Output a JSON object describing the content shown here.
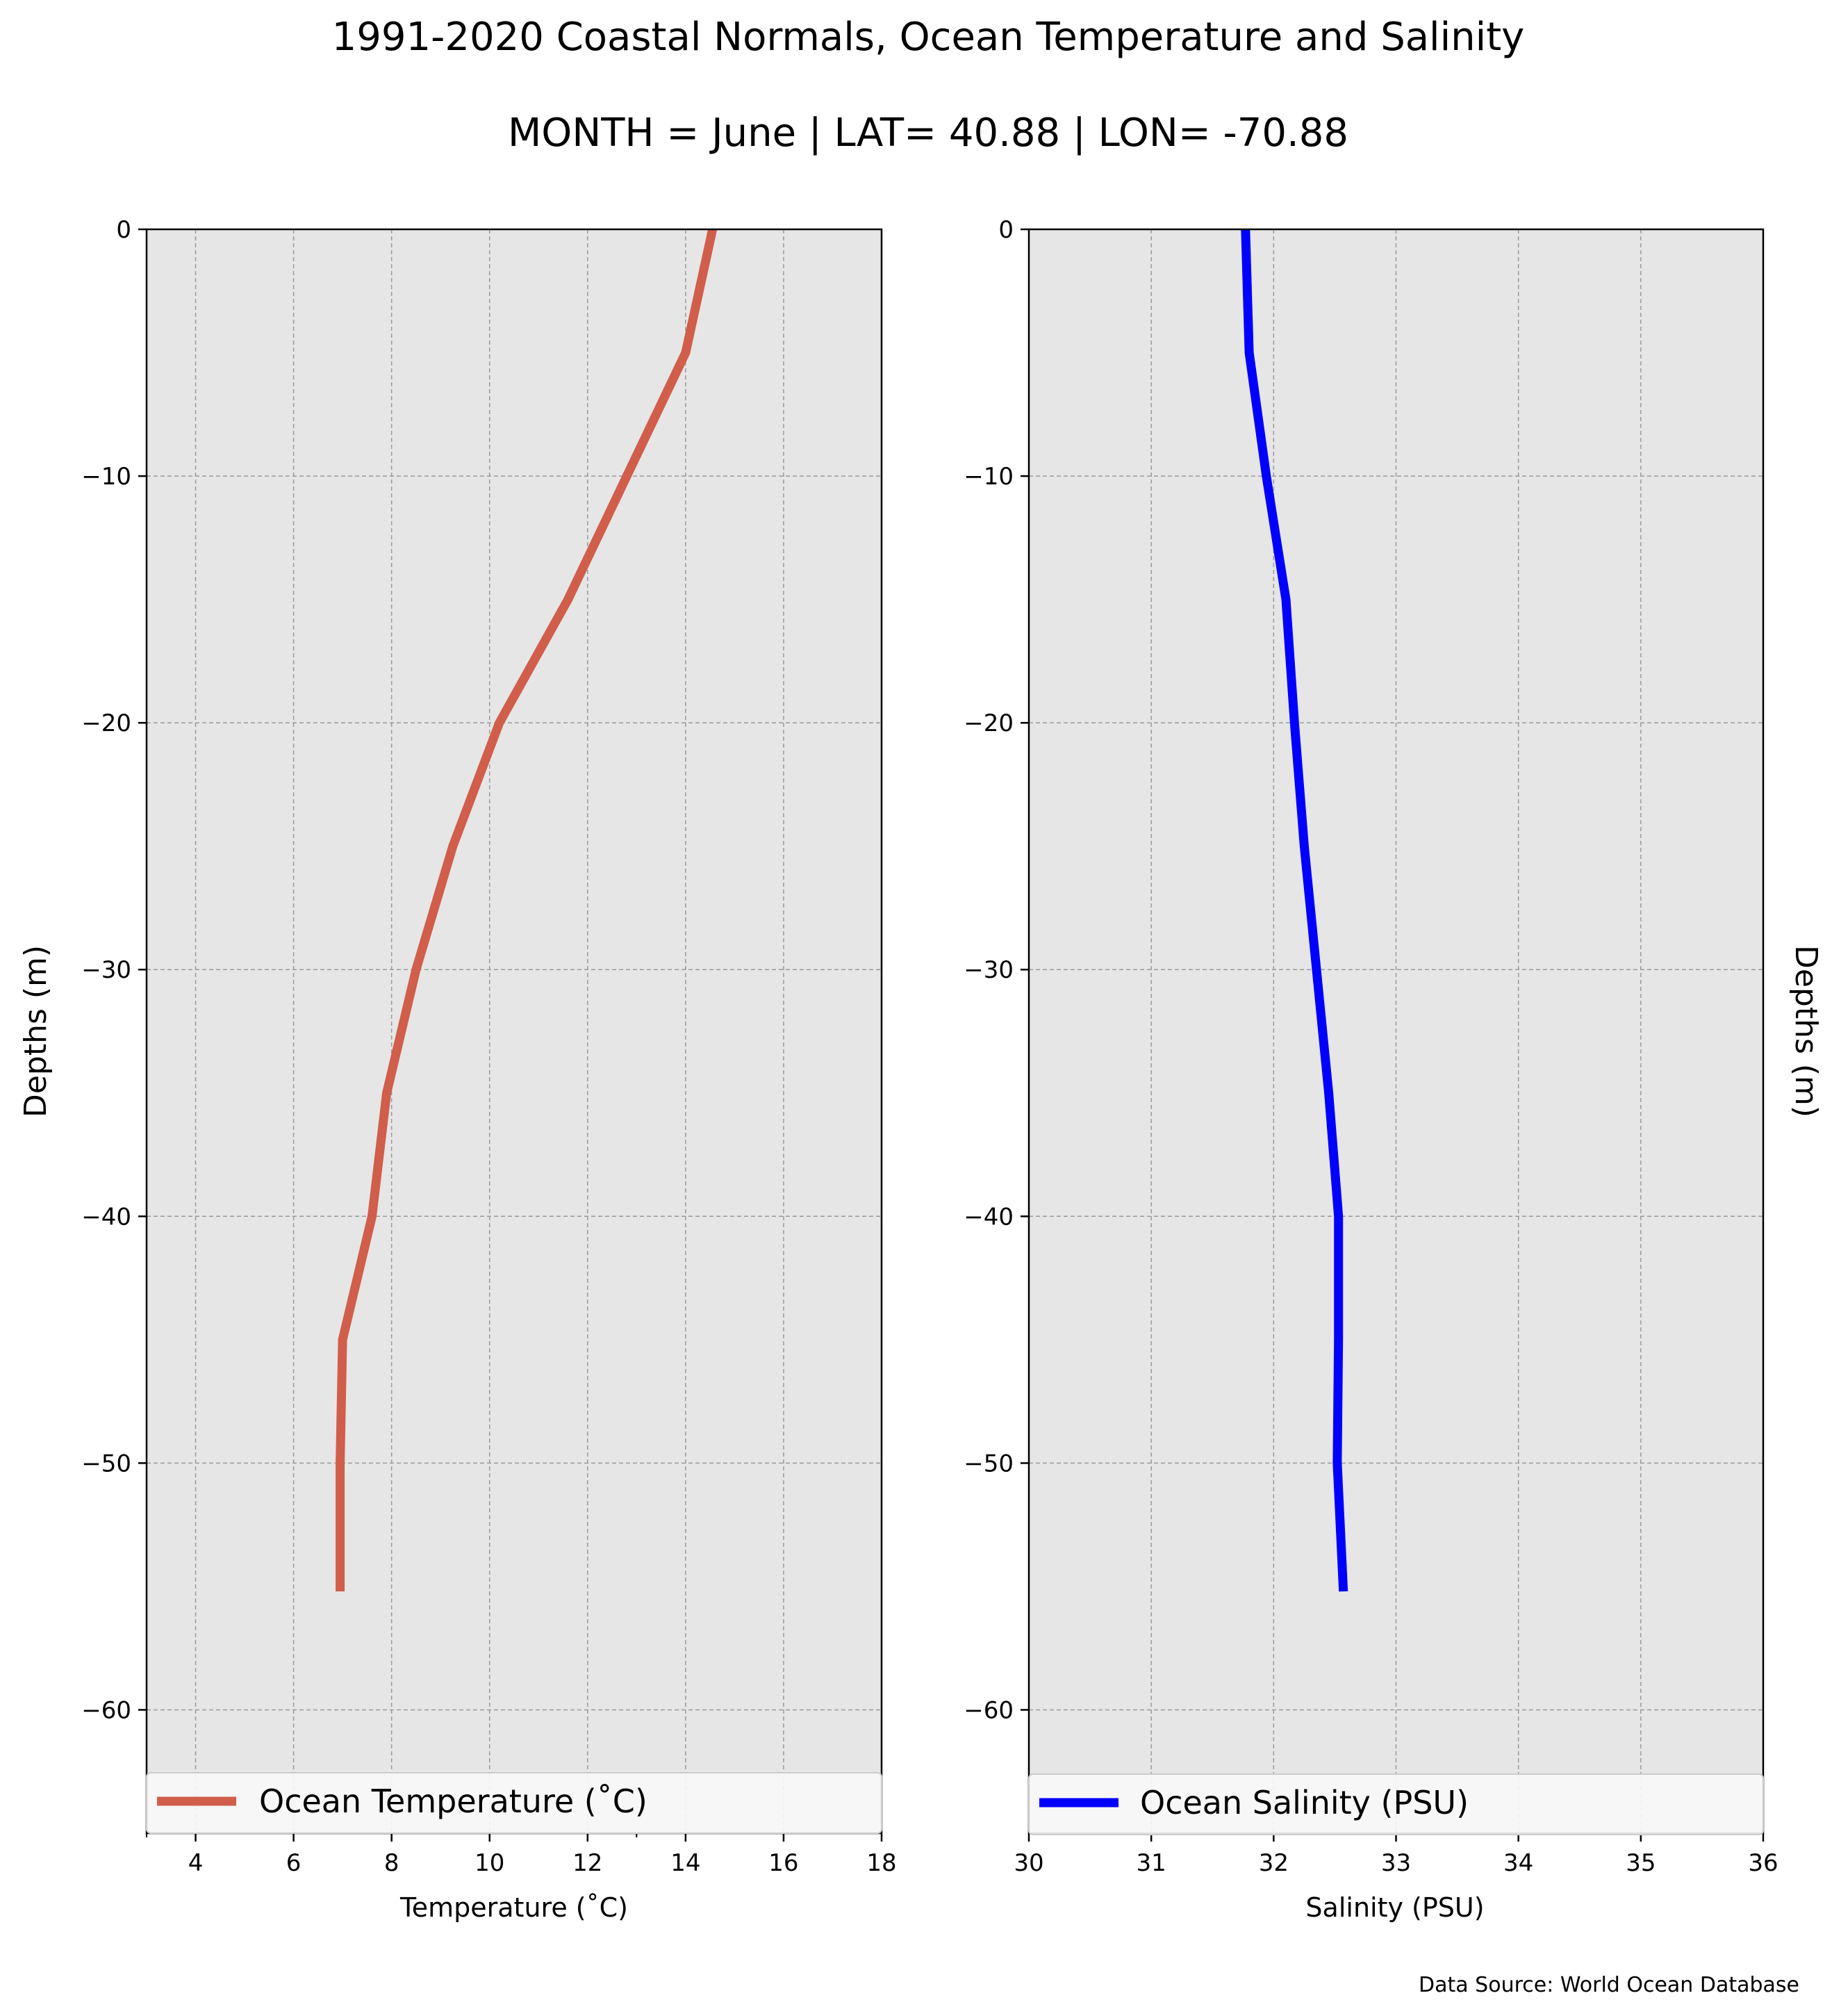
{
  "figure": {
    "title_line1": "1991-2020 Coastal Normals, Ocean Temperature and Salinity",
    "title_line2": "MONTH = June | LAT= 40.88 | LON= -70.88",
    "source": "Data Source: World Ocean Database"
  },
  "colors": {
    "background": "#e6e6e6",
    "grid": "#9a9a9a",
    "temperature_line": "#d05e4b",
    "salinity_line": "#0000ff"
  },
  "chart_data": [
    {
      "type": "line",
      "orientation": "depth-profile",
      "xlabel": "Temperature ($^\\circ$C)",
      "ylabel": "Depths (m)",
      "ylabel_side": "left",
      "xlim": [
        3,
        18
      ],
      "ylim": [
        -65,
        0
      ],
      "xticks": [
        4,
        6,
        8,
        10,
        12,
        14,
        16,
        18
      ],
      "minor_xticks": [
        3,
        13
      ],
      "yticks": [
        0,
        -10,
        -20,
        -30,
        -40,
        -50,
        -60
      ],
      "xtick_labels": [
        "4",
        "6",
        "8",
        "10",
        "12",
        "14",
        "16",
        "18"
      ],
      "ytick_labels": [
        "0",
        "−10",
        "−20",
        "−30",
        "−40",
        "−50",
        "−60"
      ],
      "grid": true,
      "legend_placement": "bottom",
      "series": [
        {
          "name": "Ocean Temperature ($^\\circ$C)",
          "color": "#d05e4b",
          "x": [
            14.55,
            14.0,
            12.8,
            11.6,
            10.2,
            9.25,
            8.5,
            7.9,
            7.6,
            7.0,
            6.95,
            6.95
          ],
          "y": [
            0,
            -5,
            -10,
            -15,
            -20,
            -25,
            -30,
            -35,
            -40,
            -45,
            -50,
            -55.2
          ]
        }
      ]
    },
    {
      "type": "line",
      "orientation": "depth-profile",
      "xlabel": "Salinity (PSU)",
      "ylabel": "Depths (m)",
      "ylabel_side": "right",
      "xlim": [
        30,
        36
      ],
      "ylim": [
        -65,
        0
      ],
      "xticks": [
        30,
        31,
        32,
        33,
        34,
        35,
        36
      ],
      "yticks": [
        0,
        -10,
        -20,
        -30,
        -40,
        -50,
        -60
      ],
      "xtick_labels": [
        "30",
        "31",
        "32",
        "33",
        "34",
        "35",
        "36"
      ],
      "ytick_labels": [
        "0",
        "−10",
        "−20",
        "−30",
        "−40",
        "−50",
        "−60"
      ],
      "grid": true,
      "legend_placement": "bottom",
      "series": [
        {
          "name": "Ocean Salinity (PSU)",
          "color": "#0000ff",
          "x": [
            31.77,
            31.8,
            31.94,
            32.1,
            32.17,
            32.25,
            32.35,
            32.45,
            32.53,
            32.53,
            32.52,
            32.57
          ],
          "y": [
            0,
            -5,
            -10,
            -15,
            -20,
            -25,
            -30,
            -35,
            -40,
            -45,
            -50,
            -55.2
          ]
        }
      ]
    }
  ]
}
